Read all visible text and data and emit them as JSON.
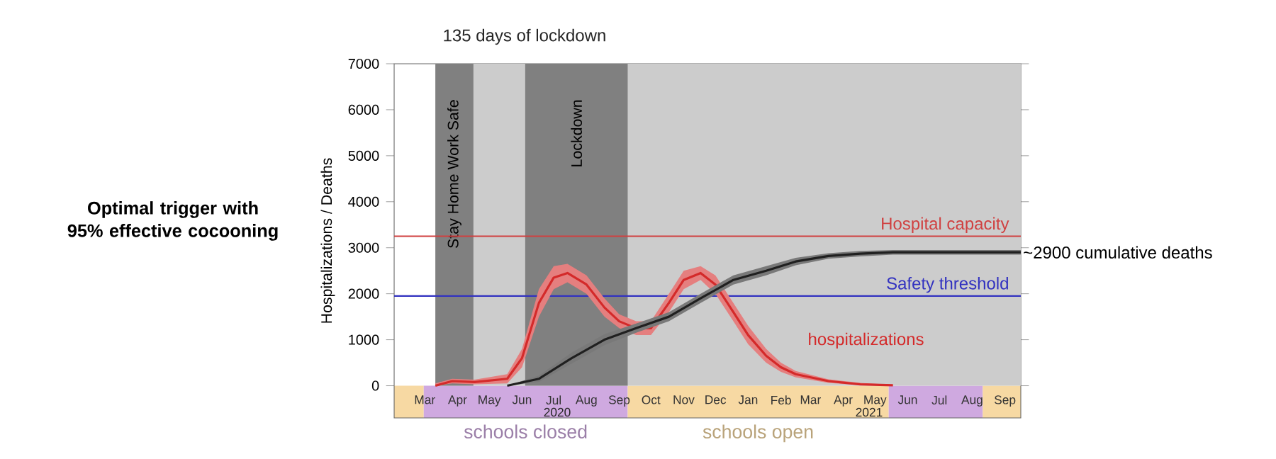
{
  "chart_data": {
    "type": "line",
    "title": "Optimal trigger with 95% effective cocooning",
    "ylabel": "Hospitalizations / Deaths",
    "xlim": [
      "2020-02-15",
      "2021-09-30"
    ],
    "ylim": [
      -700,
      7000
    ],
    "yticks": [
      0,
      1000,
      2000,
      3000,
      4000,
      5000,
      6000,
      7000
    ],
    "grid": false,
    "xticks": [
      {
        "value": "2020-03-15",
        "label": "Mar"
      },
      {
        "value": "2020-04-15",
        "label": "Apr"
      },
      {
        "value": "2020-05-15",
        "label": "May"
      },
      {
        "value": "2020-06-15",
        "label": "Jun"
      },
      {
        "value": "2020-07-15",
        "label": "Jul"
      },
      {
        "value": "2020-08-15",
        "label": "Aug"
      },
      {
        "value": "2020-09-15",
        "label": "Sep"
      },
      {
        "value": "2020-10-15",
        "label": "Oct"
      },
      {
        "value": "2020-11-15",
        "label": "Nov"
      },
      {
        "value": "2020-12-15",
        "label": "Dec"
      },
      {
        "value": "2021-01-15",
        "label": "Jan"
      },
      {
        "value": "2021-02-15",
        "label": "Feb"
      },
      {
        "value": "2021-03-15",
        "label": "Mar"
      },
      {
        "value": "2021-04-15",
        "label": "Apr"
      },
      {
        "value": "2021-05-15",
        "label": "May"
      },
      {
        "value": "2021-06-15",
        "label": "Jun"
      },
      {
        "value": "2021-07-15",
        "label": "Jul"
      },
      {
        "value": "2021-08-15",
        "label": "Aug"
      },
      {
        "value": "2021-09-15",
        "label": "Sep"
      }
    ],
    "series": [
      {
        "name": "hospitalizations",
        "color": "#d42a2a",
        "x": [
          "2020-03-25",
          "2020-04-10",
          "2020-05-01",
          "2020-06-01",
          "2020-06-15",
          "2020-07-01",
          "2020-07-15",
          "2020-07-28",
          "2020-08-15",
          "2020-09-01",
          "2020-09-15",
          "2020-10-01",
          "2020-10-15",
          "2020-11-01",
          "2020-11-15",
          "2020-12-01",
          "2020-12-15",
          "2021-01-01",
          "2021-01-15",
          "2021-02-01",
          "2021-02-15",
          "2021-03-01",
          "2021-04-01",
          "2021-05-01",
          "2021-06-01"
        ],
        "values": [
          0,
          100,
          80,
          150,
          600,
          1800,
          2350,
          2450,
          2200,
          1700,
          1400,
          1250,
          1250,
          1800,
          2300,
          2450,
          2200,
          1600,
          1100,
          650,
          400,
          250,
          100,
          30,
          10
        ],
        "lower": [
          0,
          50,
          30,
          50,
          400,
          1500,
          2100,
          2250,
          2000,
          1500,
          1250,
          1100,
          1100,
          1600,
          2100,
          2300,
          2000,
          1400,
          900,
          500,
          300,
          180,
          60,
          10,
          0
        ],
        "upper": [
          50,
          150,
          130,
          250,
          800,
          2100,
          2600,
          2650,
          2400,
          1900,
          1550,
          1400,
          1400,
          2000,
          2500,
          2600,
          2400,
          1800,
          1300,
          800,
          500,
          320,
          140,
          60,
          20
        ]
      },
      {
        "color": "#202020",
        "x": [
          "2020-06-01",
          "2020-07-01",
          "2020-08-01",
          "2020-09-01",
          "2020-10-01",
          "2020-11-01",
          "2020-12-01",
          "2021-01-01",
          "2021-02-01",
          "2021-03-01",
          "2021-04-01",
          "2021-05-01",
          "2021-06-01",
          "2021-09-30"
        ],
        "values": [
          0,
          150,
          600,
          1000,
          1250,
          1500,
          1900,
          2300,
          2500,
          2700,
          2820,
          2870,
          2900,
          2900
        ],
        "lower": [
          0,
          80,
          480,
          880,
          1150,
          1400,
          1800,
          2200,
          2400,
          2620,
          2760,
          2810,
          2850,
          2850
        ],
        "upper": [
          0,
          220,
          720,
          1120,
          1350,
          1600,
          2000,
          2400,
          2600,
          2780,
          2880,
          2930,
          2950,
          2950
        ]
      }
    ],
    "ref_lines": [
      {
        "axis": "y",
        "value": 3250,
        "label": "Hospital capacity",
        "color": "#d04040"
      },
      {
        "axis": "y",
        "value": 1950,
        "label": "Safety threshold",
        "color": "#3232c0"
      }
    ],
    "bands": [
      {
        "axis": "x",
        "from": "2020-03-25",
        "to": "2021-09-30",
        "color": "#cccccc"
      },
      {
        "axis": "x",
        "from": "2020-03-25",
        "to": "2020-04-30",
        "label": "Stay Home Work Safe",
        "color": "#808080"
      },
      {
        "axis": "x",
        "from": "2020-06-18",
        "to": "2020-09-23",
        "label": "Lockdown",
        "color": "#808080"
      },
      {
        "axis": "x",
        "from": "2020-02-15",
        "to": "2020-03-14",
        "color": "#f7d9a3"
      },
      {
        "axis": "x",
        "from": "2020-03-14",
        "to": "2020-09-23",
        "label": "schools closed",
        "color": "#cfa9e0"
      },
      {
        "axis": "x",
        "from": "2020-09-23",
        "to": "2021-05-28",
        "label": "schools open",
        "color": "#f7d9a3"
      },
      {
        "axis": "x",
        "from": "2021-05-28",
        "to": "2021-08-25",
        "color": "#cfa9e0"
      },
      {
        "axis": "x",
        "from": "2021-08-25",
        "to": "2021-09-30",
        "color": "#f7d9a3"
      }
    ],
    "annotations": [
      "135 days of lockdown",
      {
        "text": "~2900 cumulative deaths",
        "x": "2021-09-30",
        "y": 2900
      },
      "2020",
      "2021"
    ]
  }
}
